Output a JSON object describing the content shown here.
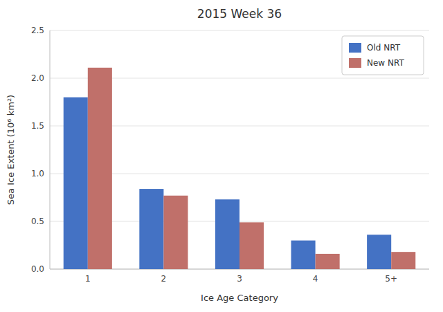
{
  "chart_data": {
    "type": "bar",
    "title": "2015 Week 36",
    "xlabel": "Ice Age Category",
    "ylabel": "Sea Ice Extent (10⁶ km²)",
    "categories": [
      "1",
      "2",
      "3",
      "4",
      "5+"
    ],
    "series": [
      {
        "name": "Old NRT",
        "color": "#4472C4",
        "values": [
          1.8,
          0.84,
          0.73,
          0.3,
          0.36
        ]
      },
      {
        "name": "New NRT",
        "color": "#C0706A",
        "values": [
          2.11,
          0.77,
          0.49,
          0.16,
          0.18
        ]
      }
    ],
    "ylim": [
      0,
      2.5
    ],
    "yticks": [
      {
        "value": 0.0,
        "label": "0.0"
      },
      0.5,
      {
        "value": 1.0,
        "label": "1.0"
      },
      1.5,
      {
        "value": 2.0,
        "label": "2.0"
      },
      2.5
    ],
    "grid": true,
    "legend": "upper right"
  }
}
